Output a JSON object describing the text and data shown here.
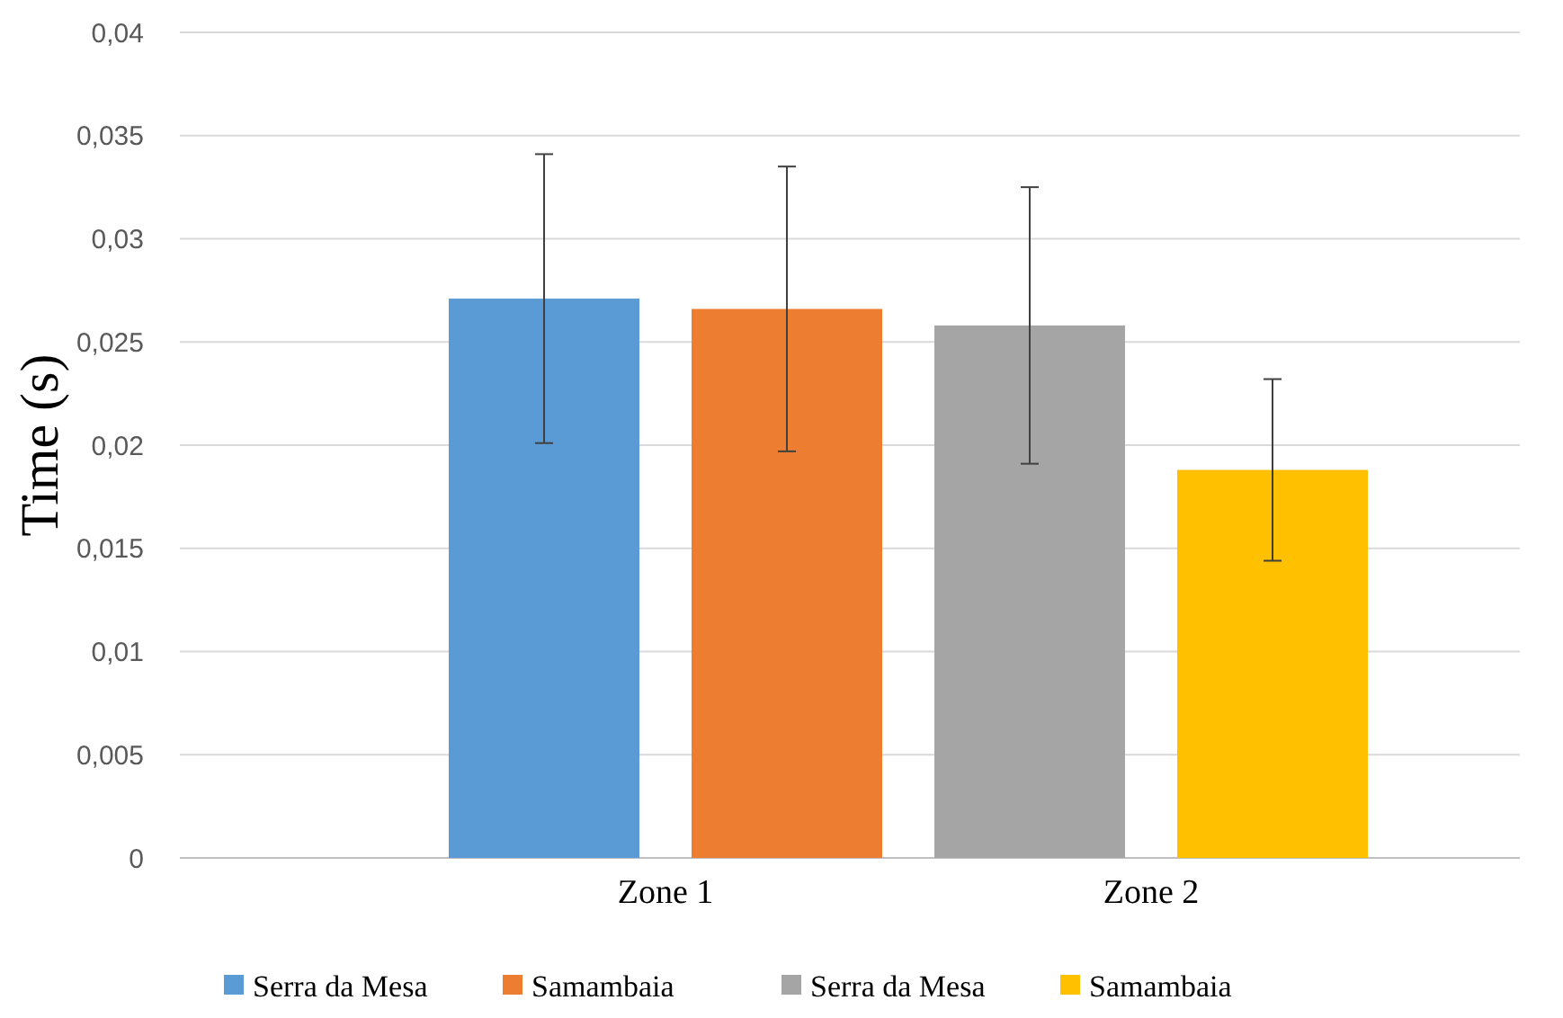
{
  "chart_data": {
    "type": "bar",
    "ylabel": "Time (s)",
    "categories": [
      "Zone 1",
      "Zone 2"
    ],
    "series": [
      {
        "name": "Serra da Mesa",
        "color": "#5b9bd5",
        "values": [
          0.0271,
          null
        ],
        "errors": [
          0.007,
          null
        ]
      },
      {
        "name": "Samambaia",
        "color": "#ed7d31",
        "values": [
          0.0266,
          null
        ],
        "errors": [
          0.0069,
          null
        ]
      },
      {
        "name": "Serra da Mesa",
        "color": "#a5a5a5",
        "values": [
          null,
          0.0258
        ],
        "errors": [
          null,
          0.0067
        ]
      },
      {
        "name": "Samambaia",
        "color": "#ffc000",
        "values": [
          null,
          0.0188
        ],
        "errors": [
          null,
          0.0044
        ]
      }
    ],
    "ylim": [
      0,
      0.04
    ],
    "yticks": [
      0,
      {
        "value": 0.005,
        "label": "0,005"
      },
      {
        "value": 0.01,
        "label": "0,01"
      },
      {
        "value": 0.015,
        "label": "0,015"
      },
      {
        "value": 0.02,
        "label": "0,02"
      },
      {
        "value": 0.025,
        "label": "0,025"
      },
      {
        "value": 0.03,
        "label": "0,03"
      },
      {
        "value": 0.035,
        "label": "0,035"
      },
      {
        "value": 0.04,
        "label": "0,04"
      }
    ],
    "grid": "y",
    "legend": "bottom"
  }
}
